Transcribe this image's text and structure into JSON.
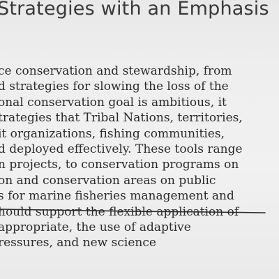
{
  "heading": "Strategies with an Emphasis",
  "paragraph_lines": [
    "ce conservation and stewardship, from",
    "d strategies for slowing the loss of the",
    "onal conservation goal is ambitious, it",
    "trategies that Tribal Nations, territories,",
    "it organizations, fishing communities,",
    "d deployed effectively. These tools range",
    "n projects, to conservation programs on",
    "on and conservation areas on public",
    "s for marine fisheries management and",
    "hould support the flexible application of",
    "appropriate, the use of adaptive",
    "ressures, and new science"
  ]
}
